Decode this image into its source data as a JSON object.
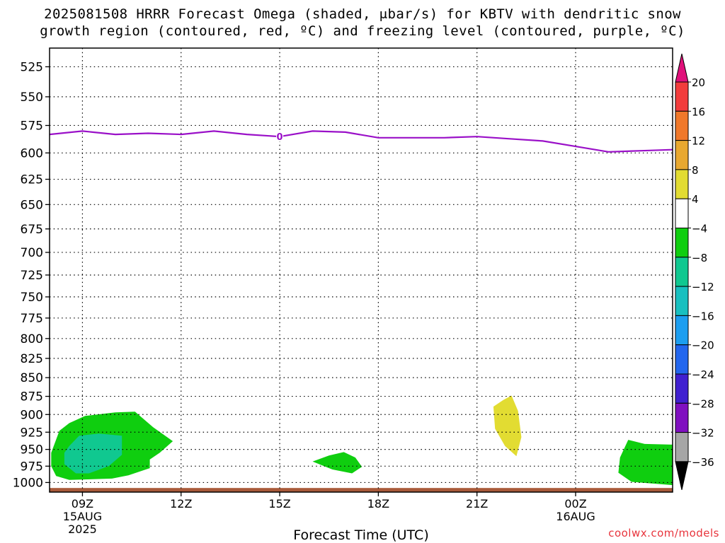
{
  "chart_data": {
    "type": "heatmap",
    "title": "2025081508 HRRR Forecast Omega (shaded, μbar/s) for KBTV with dendritic snow",
    "subtitle": "growth region (contoured, red, ºC) and freezing level (contoured, purple, ºC)",
    "xlabel": "Forecast Time (UTC)",
    "credit": "coolwx.com/models",
    "y_axis": {
      "scale": "pressure (inverted)",
      "ylim": [
        1015,
        510
      ],
      "ticks": [
        "525",
        "550",
        "575",
        "600",
        "625",
        "650",
        "675",
        "700",
        "725",
        "750",
        "775",
        "800",
        "825",
        "850",
        "875",
        "900",
        "925",
        "950",
        "975",
        "1000"
      ],
      "grid": true
    },
    "x_axis": {
      "xlim_hours": [
        8.0,
        26.95
      ],
      "ticks": [
        {
          "hour": 9,
          "lines": [
            "09Z",
            "15AUG",
            "2025"
          ]
        },
        {
          "hour": 12,
          "lines": [
            "12Z"
          ]
        },
        {
          "hour": 15,
          "lines": [
            "15Z"
          ]
        },
        {
          "hour": 18,
          "lines": [
            "18Z"
          ]
        },
        {
          "hour": 21,
          "lines": [
            "21Z"
          ]
        },
        {
          "hour": 24,
          "lines": [
            "00Z",
            "16AUG"
          ]
        }
      ],
      "grid": true
    },
    "colorbar": {
      "levels": [
        "20",
        "16",
        "12",
        "8",
        "4",
        "−4",
        "−8",
        "−12",
        "−16",
        "−20",
        "−24",
        "−28",
        "−32",
        "−36"
      ],
      "colors": [
        "#e0107a",
        "#f23c3c",
        "#f0782a",
        "#e8a830",
        "#e2dc32",
        "#ffffff",
        "#0fce0f",
        "#10c890",
        "#18c0c0",
        "#1c9ef0",
        "#2266ee",
        "#4020d0",
        "#8010c0",
        "#a6a6a6",
        "#000000"
      ]
    },
    "freezing_level": {
      "color": "#9a10c8",
      "label": "0",
      "label_hour": 15.0,
      "points": [
        [
          8.0,
          583
        ],
        [
          9.0,
          580
        ],
        [
          10.0,
          583
        ],
        [
          11.0,
          582
        ],
        [
          12.0,
          583
        ],
        [
          13.0,
          580
        ],
        [
          14.0,
          583
        ],
        [
          15.0,
          585
        ],
        [
          16.0,
          580
        ],
        [
          17.0,
          581
        ],
        [
          18.0,
          586
        ],
        [
          19.0,
          586
        ],
        [
          20.0,
          586
        ],
        [
          21.0,
          585
        ],
        [
          22.0,
          587
        ],
        [
          23.0,
          589
        ],
        [
          24.0,
          594
        ],
        [
          25.0,
          599
        ],
        [
          26.0,
          598
        ],
        [
          26.95,
          597
        ]
      ]
    },
    "omega_regions": [
      {
        "level": "-4 to -8",
        "color": "#0fce0f",
        "points": [
          [
            9.08,
            902
          ],
          [
            10.0,
            897
          ],
          [
            10.6,
            896
          ],
          [
            11.15,
            918
          ],
          [
            11.75,
            938
          ],
          [
            11.35,
            955
          ],
          [
            11.05,
            965
          ],
          [
            11.05,
            978
          ],
          [
            10.4,
            989
          ],
          [
            9.9,
            994
          ],
          [
            8.6,
            996
          ],
          [
            8.2,
            990
          ],
          [
            8.05,
            975
          ],
          [
            8.05,
            955
          ],
          [
            8.3,
            923
          ],
          [
            8.6,
            912
          ]
        ]
      },
      {
        "level": "-8 to -12",
        "color": "#10c890",
        "points": [
          [
            8.6,
            945
          ],
          [
            8.9,
            930
          ],
          [
            9.5,
            927
          ],
          [
            10.2,
            930
          ],
          [
            10.2,
            958
          ],
          [
            9.8,
            975
          ],
          [
            9.2,
            986
          ],
          [
            8.8,
            986
          ],
          [
            8.45,
            972
          ],
          [
            8.45,
            955
          ]
        ]
      },
      {
        "level": "-4 to -8",
        "color": "#0fce0f",
        "points": [
          [
            16.0,
            968
          ],
          [
            16.5,
            959
          ],
          [
            16.95,
            954
          ],
          [
            17.3,
            962
          ],
          [
            17.5,
            976
          ],
          [
            17.2,
            986
          ],
          [
            16.6,
            980
          ]
        ]
      },
      {
        "level": "4 to 8",
        "color": "#e2dc32",
        "points": [
          [
            21.5,
            889
          ],
          [
            21.8,
            880
          ],
          [
            22.05,
            874
          ],
          [
            22.25,
            895
          ],
          [
            22.35,
            932
          ],
          [
            22.2,
            960
          ],
          [
            21.85,
            945
          ],
          [
            21.55,
            920
          ]
        ]
      },
      {
        "level": "-4 to -8",
        "color": "#0fce0f",
        "points": [
          [
            25.35,
            962
          ],
          [
            25.6,
            936
          ],
          [
            26.1,
            942
          ],
          [
            26.95,
            943
          ],
          [
            26.95,
            1004
          ],
          [
            25.7,
            999
          ],
          [
            25.3,
            985
          ]
        ]
      }
    ],
    "terrain": {
      "color": "#a85a3a",
      "pressure": 1013
    }
  }
}
